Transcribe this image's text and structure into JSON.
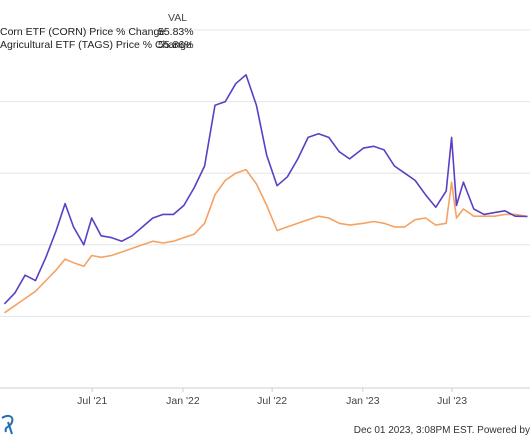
{
  "legend": {
    "header": "VAL",
    "rows": [
      {
        "name": "Corn ETF (CORN) Price % Change",
        "value": "55.83%",
        "color": "#5b3fc4"
      },
      {
        "name": "Agricultural ETF (TAGS) Price % Change",
        "value": "55.86%",
        "color": "#f5a263"
      }
    ]
  },
  "footer": "Dec 01 2023, 3:08PM EST. Powered by",
  "chart_data": {
    "type": "line",
    "x_ticks": [
      "Jul '21",
      "Jan '22",
      "Jul '22",
      "Jan '23",
      "Jul '23"
    ],
    "grid": "horizontal",
    "series": [
      {
        "name": "Corn ETF (CORN) Price % Change",
        "color": "#5b3fc4",
        "points": [
          [
            "2021-01-04",
            7
          ],
          [
            "2021-01-25",
            13
          ],
          [
            "2021-02-15",
            23
          ],
          [
            "2021-03-08",
            20
          ],
          [
            "2021-03-29",
            33
          ],
          [
            "2021-04-19",
            48
          ],
          [
            "2021-05-07",
            63
          ],
          [
            "2021-05-24",
            50
          ],
          [
            "2021-06-14",
            40
          ],
          [
            "2021-06-30",
            55
          ],
          [
            "2021-07-19",
            45
          ],
          [
            "2021-08-09",
            44
          ],
          [
            "2021-08-30",
            42
          ],
          [
            "2021-09-20",
            45
          ],
          [
            "2021-10-11",
            50
          ],
          [
            "2021-11-01",
            55
          ],
          [
            "2021-11-22",
            57
          ],
          [
            "2021-12-13",
            57
          ],
          [
            "2022-01-03",
            62
          ],
          [
            "2022-01-24",
            72
          ],
          [
            "2022-02-14",
            84
          ],
          [
            "2022-03-07",
            118
          ],
          [
            "2022-03-28",
            120
          ],
          [
            "2022-04-18",
            130
          ],
          [
            "2022-05-09",
            135
          ],
          [
            "2022-05-30",
            118
          ],
          [
            "2022-06-20",
            90
          ],
          [
            "2022-07-11",
            73
          ],
          [
            "2022-08-01",
            78
          ],
          [
            "2022-08-22",
            88
          ],
          [
            "2022-09-12",
            100
          ],
          [
            "2022-10-03",
            102
          ],
          [
            "2022-10-24",
            100
          ],
          [
            "2022-11-14",
            92
          ],
          [
            "2022-12-05",
            88
          ],
          [
            "2023-01-02",
            94
          ],
          [
            "2023-01-23",
            95
          ],
          [
            "2023-02-13",
            93
          ],
          [
            "2023-03-06",
            84
          ],
          [
            "2023-03-27",
            80
          ],
          [
            "2023-04-17",
            76
          ],
          [
            "2023-05-08",
            68
          ],
          [
            "2023-05-29",
            61
          ],
          [
            "2023-06-19",
            70
          ],
          [
            "2023-06-30",
            100
          ],
          [
            "2023-07-10",
            62
          ],
          [
            "2023-07-24",
            75
          ],
          [
            "2023-08-14",
            60
          ],
          [
            "2023-09-04",
            57
          ],
          [
            "2023-09-25",
            58
          ],
          [
            "2023-10-16",
            59
          ],
          [
            "2023-11-06",
            56
          ],
          [
            "2023-12-01",
            55.83
          ]
        ]
      },
      {
        "name": "Agricultural ETF (TAGS) Price % Change",
        "color": "#f5a263",
        "points": [
          [
            "2021-01-04",
            2
          ],
          [
            "2021-01-25",
            6
          ],
          [
            "2021-02-15",
            10
          ],
          [
            "2021-03-08",
            14
          ],
          [
            "2021-03-29",
            20
          ],
          [
            "2021-04-19",
            26
          ],
          [
            "2021-05-07",
            32
          ],
          [
            "2021-05-24",
            30
          ],
          [
            "2021-06-14",
            28
          ],
          [
            "2021-06-30",
            34
          ],
          [
            "2021-07-19",
            33
          ],
          [
            "2021-08-09",
            34
          ],
          [
            "2021-08-30",
            36
          ],
          [
            "2021-09-20",
            38
          ],
          [
            "2021-10-11",
            40
          ],
          [
            "2021-11-01",
            42
          ],
          [
            "2021-11-22",
            41
          ],
          [
            "2021-12-13",
            42
          ],
          [
            "2022-01-03",
            44
          ],
          [
            "2022-01-24",
            46
          ],
          [
            "2022-02-14",
            52
          ],
          [
            "2022-03-07",
            68
          ],
          [
            "2022-03-28",
            76
          ],
          [
            "2022-04-18",
            80
          ],
          [
            "2022-05-09",
            82
          ],
          [
            "2022-05-30",
            74
          ],
          [
            "2022-06-20",
            62
          ],
          [
            "2022-07-11",
            48
          ],
          [
            "2022-08-01",
            50
          ],
          [
            "2022-08-22",
            52
          ],
          [
            "2022-09-12",
            54
          ],
          [
            "2022-10-03",
            56
          ],
          [
            "2022-10-24",
            55
          ],
          [
            "2022-11-14",
            52
          ],
          [
            "2022-12-05",
            51
          ],
          [
            "2023-01-02",
            52
          ],
          [
            "2023-01-23",
            53
          ],
          [
            "2023-02-13",
            52
          ],
          [
            "2023-03-06",
            50
          ],
          [
            "2023-03-27",
            50
          ],
          [
            "2023-04-17",
            54
          ],
          [
            "2023-05-08",
            55
          ],
          [
            "2023-05-29",
            51
          ],
          [
            "2023-06-19",
            52
          ],
          [
            "2023-06-30",
            75
          ],
          [
            "2023-07-10",
            55
          ],
          [
            "2023-07-24",
            60
          ],
          [
            "2023-08-14",
            56
          ],
          [
            "2023-09-04",
            56
          ],
          [
            "2023-09-25",
            56
          ],
          [
            "2023-10-16",
            57
          ],
          [
            "2023-11-06",
            57
          ],
          [
            "2023-12-01",
            55.86
          ]
        ]
      }
    ]
  }
}
